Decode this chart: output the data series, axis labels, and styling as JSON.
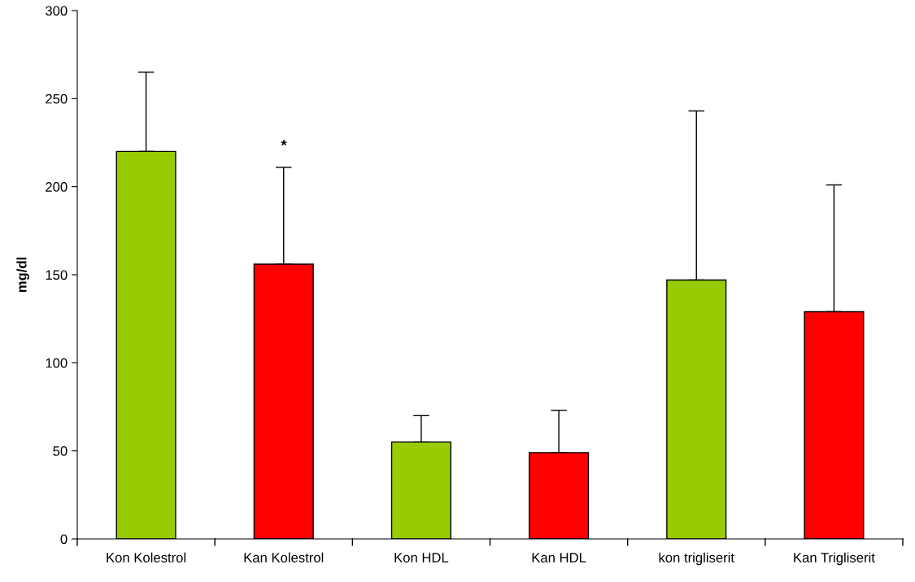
{
  "chart_data": {
    "type": "bar",
    "ylabel": "mg/dl",
    "categories": [
      "Kon Kolestrol",
      "Kan Kolestrol",
      "Kon HDL",
      "Kan HDL",
      "kon trigliserit",
      "Kan Trigliserit"
    ],
    "values": [
      220,
      156,
      55,
      49,
      147,
      129
    ],
    "colors": [
      "#99cc00",
      "#ff0000",
      "#99cc00",
      "#ff0000",
      "#99cc00",
      "#ff0000"
    ],
    "errors": [
      [
        220,
        265
      ],
      [
        156,
        211
      ],
      [
        55,
        70
      ],
      [
        49,
        73
      ],
      [
        147,
        243
      ],
      [
        129,
        201
      ]
    ],
    "ylim": [
      0,
      300
    ],
    "yticks": [
      0,
      50,
      100,
      150,
      200,
      250,
      300
    ],
    "annotations": [
      "*"
    ],
    "grid": false,
    "legend": false
  }
}
